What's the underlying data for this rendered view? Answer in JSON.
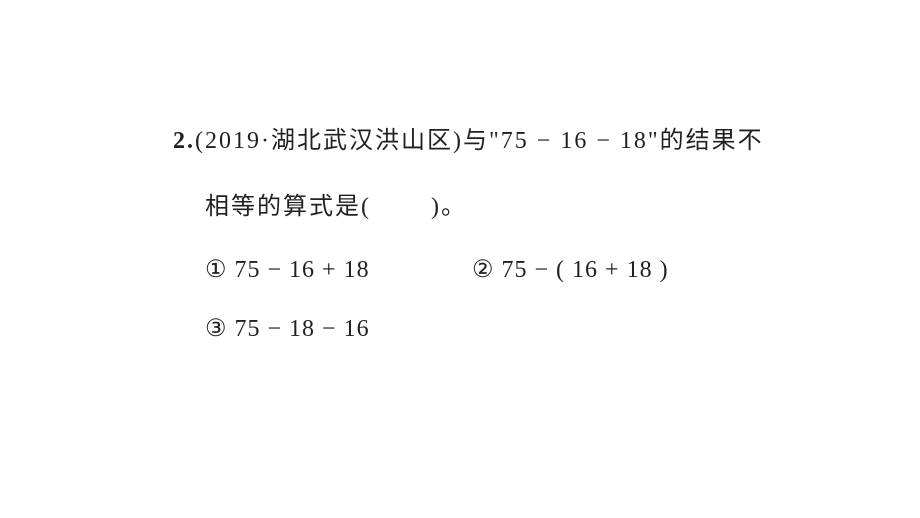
{
  "question": {
    "number": "2.",
    "source_prefix": "(",
    "year": "2019",
    "separator": "·",
    "region": "湖北武汉洪山区",
    "source_suffix": ")",
    "text_part1": "与\"",
    "expression": "75 − 16 − 18",
    "text_part2": "\"的结果不",
    "line2_text": "相等的算式是(",
    "line2_end": ")。"
  },
  "options": {
    "a": {
      "marker": "①",
      "text": "75 − 16 + 18"
    },
    "b": {
      "marker": "②",
      "text": "75 − ( 16 + 18 )"
    },
    "c": {
      "marker": "③",
      "text": "75 − 18 − 16"
    }
  },
  "style": {
    "font_size": 24,
    "text_color": "#231f20",
    "background_color": "#ffffff"
  }
}
